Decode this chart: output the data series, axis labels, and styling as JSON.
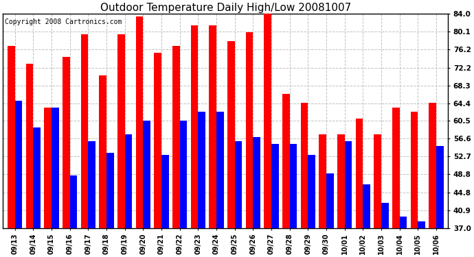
{
  "title": "Outdoor Temperature Daily High/Low 20081007",
  "copyright": "Copyright 2008 Cartronics.com",
  "dates": [
    "09/13",
    "09/14",
    "09/15",
    "09/16",
    "09/17",
    "09/18",
    "09/19",
    "09/20",
    "09/21",
    "09/22",
    "09/23",
    "09/24",
    "09/25",
    "09/26",
    "09/27",
    "09/28",
    "09/29",
    "09/30",
    "10/01",
    "10/02",
    "10/03",
    "10/04",
    "10/05",
    "10/06"
  ],
  "highs": [
    77.0,
    73.0,
    63.5,
    74.5,
    79.5,
    70.5,
    79.5,
    83.5,
    75.5,
    77.0,
    81.5,
    81.5,
    78.0,
    80.0,
    85.0,
    66.5,
    64.5,
    57.5,
    57.5,
    61.0,
    57.5,
    63.5,
    62.5,
    64.5
  ],
  "lows": [
    65.0,
    59.0,
    63.5,
    48.5,
    56.0,
    53.5,
    57.5,
    60.5,
    53.0,
    60.5,
    62.5,
    62.5,
    56.0,
    57.0,
    55.5,
    55.5,
    53.0,
    49.0,
    56.0,
    46.5,
    42.5,
    39.5,
    38.5,
    55.0
  ],
  "ylim_min": 37.0,
  "ylim_max": 84.0,
  "yticks": [
    37.0,
    40.9,
    44.8,
    48.8,
    52.7,
    56.6,
    60.5,
    64.4,
    68.3,
    72.2,
    76.2,
    80.1,
    84.0
  ],
  "bar_color_high": "#ff0000",
  "bar_color_low": "#0000ff",
  "bg_color": "#ffffff",
  "grid_color": "#c0c0c0",
  "title_fontsize": 11,
  "copyright_fontsize": 7,
  "bar_width": 0.4,
  "figwidth": 6.9,
  "figheight": 3.75,
  "dpi": 100
}
